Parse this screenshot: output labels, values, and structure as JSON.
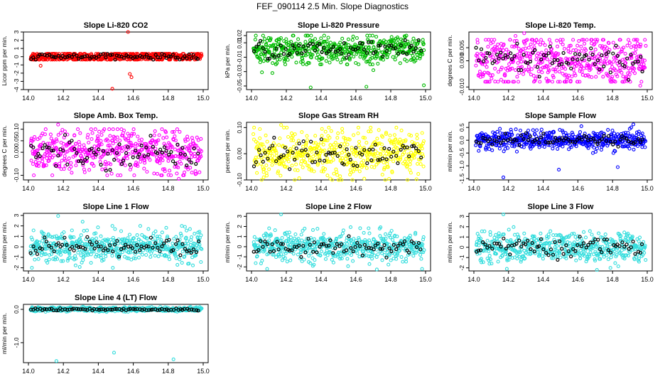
{
  "figure_title": "FEF_090114  2.5 Min. Slope Diagnostics",
  "chart_data": [
    {
      "type": "scatter",
      "title": "Slope Li-820 CO2",
      "xlabel": "",
      "ylabel": "Licor ppm per min.",
      "xlim": [
        14.0,
        15.0
      ],
      "ylim": [
        -4,
        3
      ],
      "xticks": [
        "14.0",
        "14.2",
        "14.4",
        "14.6",
        "14.8",
        "15.0"
      ],
      "yticks": [
        "-4",
        "-3",
        "-2",
        "-1",
        "0",
        "1",
        "2",
        "3"
      ],
      "color": "#ff0000",
      "bg_band": [
        -0.35,
        0.35
      ],
      "bg_spread": 0.3,
      "outliers": [
        [
          14.57,
          3.0
        ],
        [
          14.58,
          -2.1
        ],
        [
          14.48,
          -3.9
        ],
        [
          14.59,
          -2.5
        ],
        [
          14.07,
          -1.1
        ]
      ]
    },
    {
      "type": "scatter",
      "title": "Slope Li-820 Pressure",
      "xlabel": "",
      "ylabel": "kPa per min.",
      "xlim": [
        14.0,
        15.0
      ],
      "ylim": [
        -0.055,
        0.025
      ],
      "xticks": [
        "14.0",
        "14.2",
        "14.4",
        "14.6",
        "14.8",
        "15.0"
      ],
      "yticks": [
        "-0.05",
        "-0.03",
        "-0.01",
        "0.01",
        "0.02"
      ],
      "color": "#00bb00",
      "bg_band": [
        -0.02,
        0.02
      ],
      "bg_spread": 0.01,
      "outliers": [
        [
          14.34,
          -0.052
        ],
        [
          14.66,
          -0.051
        ],
        [
          14.99,
          -0.049
        ],
        [
          14.06,
          -0.031
        ],
        [
          14.12,
          -0.032
        ],
        [
          14.7,
          -0.028
        ]
      ]
    },
    {
      "type": "scatter",
      "title": "Slope Li-820 Temp.",
      "xlabel": "",
      "ylabel": "degrees C per min.",
      "xlim": [
        14.0,
        15.0
      ],
      "ylim": [
        -0.011,
        0.011
      ],
      "xticks": [
        "14.0",
        "14.2",
        "14.4",
        "14.6",
        "14.8",
        "15.0"
      ],
      "yticks": [
        "-0.010",
        "0.000",
        "0.005"
      ],
      "color": "#ff00ff",
      "bg_band": [
        -0.008,
        0.008
      ],
      "bg_spread": 0.005,
      "outliers": [
        [
          14.24,
          0.0095
        ],
        [
          14.29,
          0.0105
        ],
        [
          14.96,
          -0.0095
        ]
      ]
    },
    {
      "type": "scatter",
      "title": "Slope Amb. Box Temp.",
      "xlabel": "",
      "ylabel": "degrees C per min.",
      "xlim": [
        14.0,
        15.0
      ],
      "ylim": [
        -0.12,
        0.13
      ],
      "xticks": [
        "14.0",
        "14.2",
        "14.4",
        "14.6",
        "14.8",
        "15.0"
      ],
      "yticks": [
        "-0.10",
        "0.00",
        "0.05",
        "0.10"
      ],
      "color": "#ff00ff",
      "bg_band": [
        -0.1,
        0.1
      ],
      "bg_spread": 0.05,
      "outliers": [
        [
          14.17,
          0.12
        ],
        [
          14.86,
          -0.115
        ],
        [
          14.51,
          0.1
        ]
      ]
    },
    {
      "type": "scatter",
      "title": "Slope Gas Stream RH",
      "xlabel": "",
      "ylabel": "percent per min.",
      "xlim": [
        14.0,
        15.0
      ],
      "ylim": [
        -0.1,
        0.12
      ],
      "xticks": [
        "14.0",
        "14.2",
        "14.4",
        "14.6",
        "14.8",
        "15.0"
      ],
      "yticks": [
        "-0.10",
        "0.00",
        "0.10"
      ],
      "color": "#ffff00",
      "bg_band": [
        -0.1,
        0.1
      ],
      "bg_spread": 0.045,
      "outliers": [
        [
          14.17,
          0.11
        ],
        [
          14.58,
          -0.1
        ],
        [
          14.07,
          -0.09
        ]
      ]
    },
    {
      "type": "scatter",
      "title": "Slope Sample Flow",
      "xlabel": "",
      "ylabel": "ml/min per min.",
      "xlim": [
        14.0,
        15.0
      ],
      "ylim": [
        -1.55,
        0.7
      ],
      "xticks": [
        "14.0",
        "14.2",
        "14.4",
        "14.6",
        "14.8",
        "15.0"
      ],
      "yticks": [
        "-1.5",
        "-1.0",
        "-0.5",
        "0.0",
        "0.5"
      ],
      "color": "#0000ff",
      "bg_band": [
        -0.5,
        0.5
      ],
      "bg_spread": 0.18,
      "outliers": [
        [
          14.17,
          -1.45
        ],
        [
          14.49,
          -1.15
        ],
        [
          14.83,
          -1.05
        ],
        [
          14.92,
          0.62
        ],
        [
          14.62,
          0.55
        ]
      ]
    },
    {
      "type": "scatter",
      "title": "Slope Line 1 Flow",
      "xlabel": "",
      "ylabel": "ml/min per min.",
      "xlim": [
        14.0,
        15.0
      ],
      "ylim": [
        -2.3,
        3.2
      ],
      "xticks": [
        "14.0",
        "14.2",
        "14.4",
        "14.6",
        "14.8",
        "15.0"
      ],
      "yticks": [
        "-2",
        "-1",
        "0",
        "1",
        "2",
        "3"
      ],
      "color": "#33dddd",
      "bg_band": [
        -2,
        2
      ],
      "bg_spread": 0.75,
      "outliers": [
        [
          14.17,
          2.95
        ],
        [
          14.31,
          2.4
        ],
        [
          14.64,
          2.0
        ]
      ]
    },
    {
      "type": "scatter",
      "title": "Slope Line 2 Flow",
      "xlabel": "",
      "ylabel": "ml/min per min.",
      "xlim": [
        14.0,
        15.0
      ],
      "ylim": [
        -2.4,
        3.3
      ],
      "xticks": [
        "14.0",
        "14.2",
        "14.4",
        "14.6",
        "14.8",
        "15.0"
      ],
      "yticks": [
        "-2",
        "-1",
        "0",
        "1",
        "2",
        "3"
      ],
      "color": "#33dddd",
      "bg_band": [
        -2,
        2
      ],
      "bg_spread": 0.7,
      "outliers": [
        [
          14.17,
          3.2
        ],
        [
          14.09,
          -2.2
        ],
        [
          14.72,
          -2.25
        ],
        [
          14.98,
          -2.2
        ]
      ]
    },
    {
      "type": "scatter",
      "title": "Slope Line 3 Flow",
      "xlabel": "",
      "ylabel": "ml/min per min.",
      "xlim": [
        14.0,
        15.0
      ],
      "ylim": [
        -2.3,
        3.3
      ],
      "xticks": [
        "14.0",
        "14.2",
        "14.4",
        "14.6",
        "14.8",
        "15.0"
      ],
      "yticks": [
        "-2",
        "-1",
        "0",
        "1",
        "2",
        "3"
      ],
      "color": "#33dddd",
      "bg_band": [
        -2,
        2
      ],
      "bg_spread": 0.7,
      "outliers": [
        [
          14.17,
          3.2
        ],
        [
          14.19,
          -2.1
        ],
        [
          14.71,
          -2.2
        ]
      ]
    },
    {
      "type": "scatter",
      "title": "Slope Line 4 (LT) Flow",
      "xlabel": "",
      "ylabel": "ml/min per min.",
      "xlim": [
        14.0,
        15.0
      ],
      "ylim": [
        -1.6,
        0.15
      ],
      "xticks": [
        "14.0",
        "14.2",
        "14.4",
        "14.6",
        "14.8",
        "15.0"
      ],
      "yticks": [
        "-1.0",
        "0.0"
      ],
      "color": "#33dddd",
      "bg_band": [
        -0.12,
        0.08
      ],
      "bg_spread": 0.03,
      "outliers": [
        [
          14.16,
          -1.55
        ],
        [
          14.49,
          -1.3
        ],
        [
          14.83,
          -1.5
        ]
      ]
    }
  ]
}
